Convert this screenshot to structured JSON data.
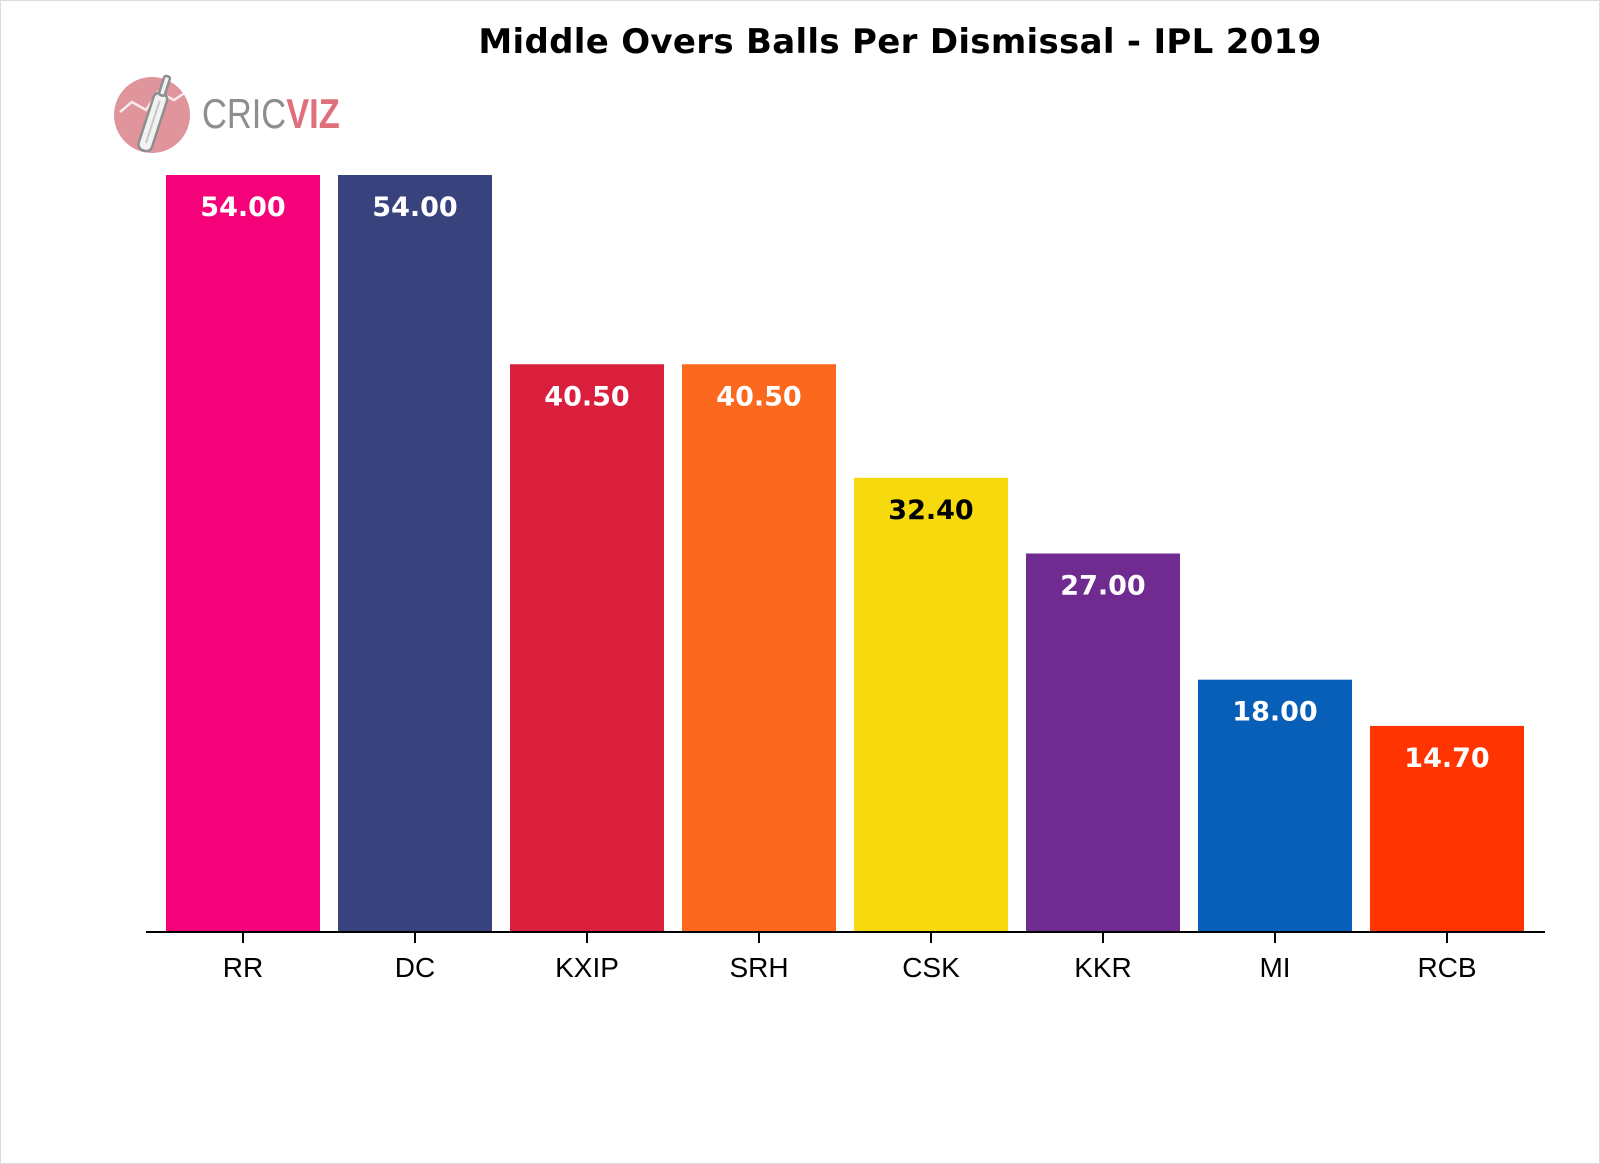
{
  "chart_data": {
    "type": "bar",
    "title": "Middle Overs Balls Per Dismissal - IPL 2019",
    "xlabel": "",
    "ylabel": "",
    "categories": [
      "RR",
      "DC",
      "KXIP",
      "SRH",
      "CSK",
      "KKR",
      "MI",
      "RCB"
    ],
    "values": [
      54.0,
      54.0,
      40.5,
      40.5,
      32.4,
      27.0,
      18.0,
      14.7
    ],
    "value_labels": [
      "54.00",
      "54.00",
      "40.50",
      "40.50",
      "32.40",
      "27.00",
      "18.00",
      "14.70"
    ],
    "bar_colors": [
      "#f5027a",
      "#38437e",
      "#da1f3d",
      "#fd681f",
      "#f6da0e",
      "#6f2b8f",
      "#075fb7",
      "#ff3401"
    ],
    "label_colors": [
      "#ffffff",
      "#ffffff",
      "#ffffff",
      "#ffffff",
      "#000000",
      "#ffffff",
      "#ffffff",
      "#ffffff"
    ],
    "ylim": [
      0,
      54
    ],
    "grid": false,
    "legend": "none"
  },
  "logo": {
    "text_part1": "CRIC",
    "text_part2": "VIZ",
    "colors": {
      "circle": "#e0949b",
      "gray": "#8e8e8e",
      "pink": "#e06f7c"
    }
  }
}
